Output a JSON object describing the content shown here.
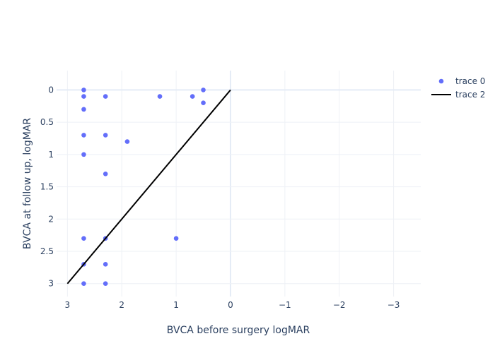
{
  "chart_data": {
    "type": "scatter",
    "title": "",
    "xlabel": "BVCA before surgery logMAR",
    "ylabel": "BVCA at follow up, logMAR",
    "xlim": [
      3.2,
      -3.5
    ],
    "ylim": [
      3.2,
      -0.3
    ],
    "x_reversed": true,
    "y_reversed": true,
    "grid": true,
    "legend_position": "top-right",
    "x_ticks": [
      3,
      2,
      1,
      0,
      -1,
      -2,
      -3
    ],
    "x_tick_labels": [
      "3",
      "2",
      "1",
      "0",
      "−1",
      "−2",
      "−3"
    ],
    "y_ticks": [
      0,
      0.5,
      1,
      1.5,
      2,
      2.5,
      3
    ],
    "y_tick_labels": [
      "0",
      "0.5",
      "1",
      "1.5",
      "2",
      "2.5",
      "3"
    ],
    "series": [
      {
        "name": "trace 0",
        "mode": "markers",
        "color": "#636efa",
        "points": [
          {
            "x": 2.7,
            "y": 0
          },
          {
            "x": 2.7,
            "y": 0.1
          },
          {
            "x": 2.3,
            "y": 0.1
          },
          {
            "x": 1.3,
            "y": 0.1
          },
          {
            "x": 0.7,
            "y": 0.1
          },
          {
            "x": 0.5,
            "y": 0
          },
          {
            "x": 0.5,
            "y": 0.2
          },
          {
            "x": 2.7,
            "y": 0.3
          },
          {
            "x": 2.7,
            "y": 0.7
          },
          {
            "x": 2.3,
            "y": 0.7
          },
          {
            "x": 1.9,
            "y": 0.8
          },
          {
            "x": 2.7,
            "y": 1.0
          },
          {
            "x": 2.3,
            "y": 1.3
          },
          {
            "x": 2.7,
            "y": 2.3
          },
          {
            "x": 2.3,
            "y": 2.3
          },
          {
            "x": 1.0,
            "y": 2.3
          },
          {
            "x": 2.7,
            "y": 2.7
          },
          {
            "x": 2.3,
            "y": 2.7
          },
          {
            "x": 2.7,
            "y": 3.0
          },
          {
            "x": 2.3,
            "y": 3.0
          }
        ]
      },
      {
        "name": "trace 2",
        "mode": "lines",
        "color": "#000000",
        "points": [
          {
            "x": 3.0,
            "y": 3.0
          },
          {
            "x": 0,
            "y": 0
          }
        ]
      }
    ]
  }
}
